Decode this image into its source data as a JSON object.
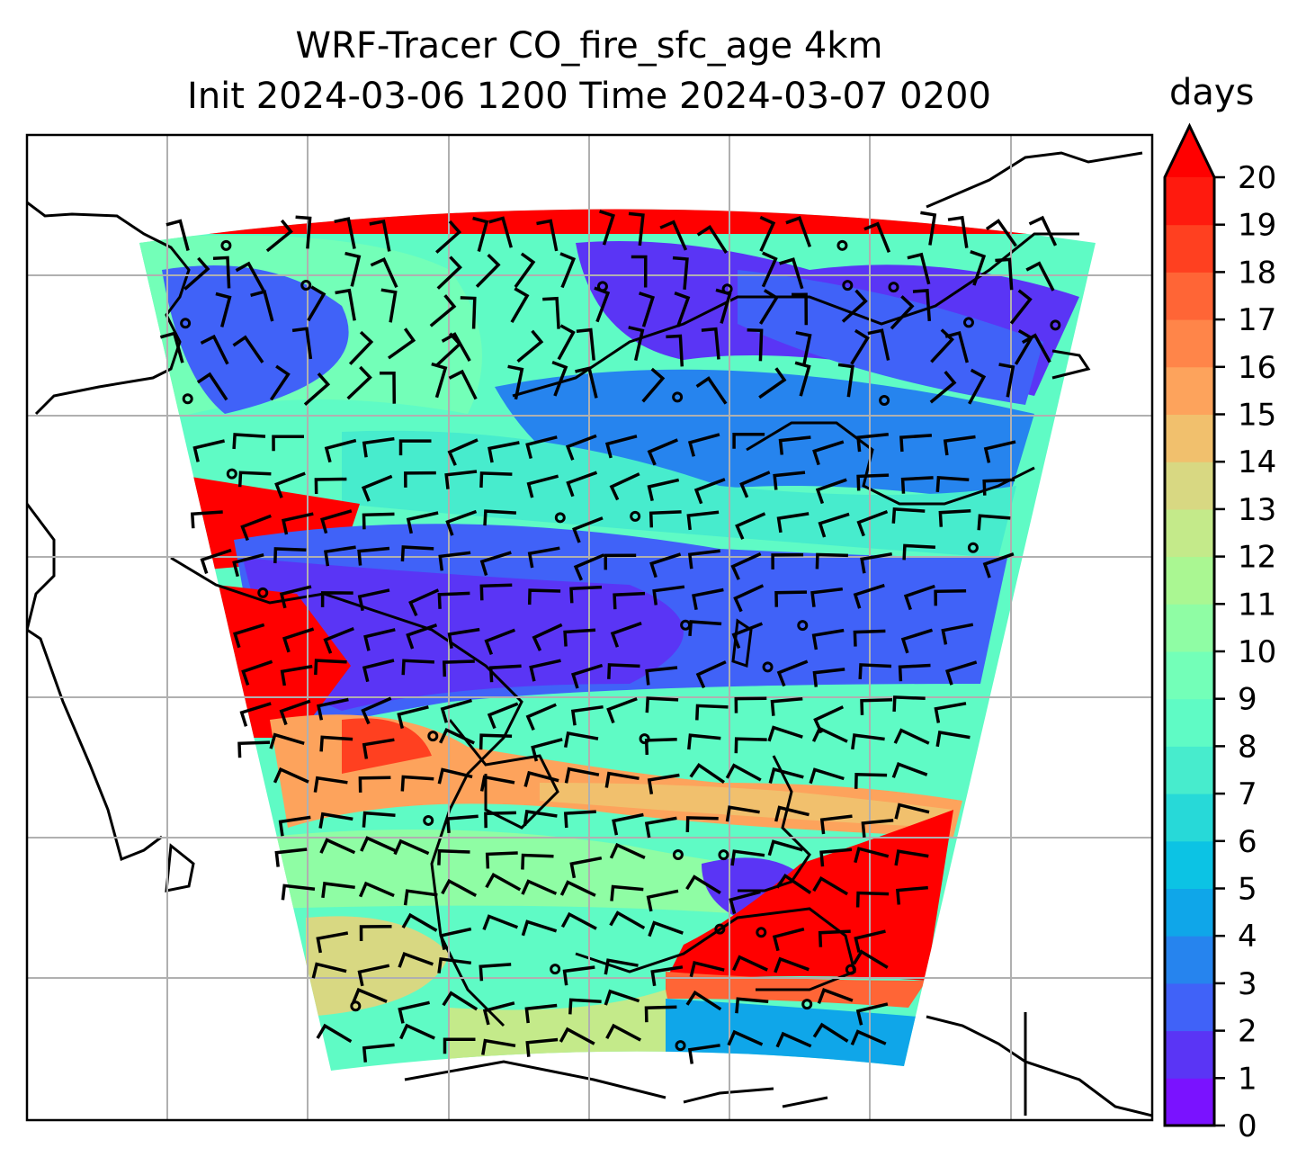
{
  "title": {
    "line1": "WRF-Tracer CO_fire_sfc_age 4km",
    "line2": "Init 2024-03-06 1200 Time 2024-03-07 0200"
  },
  "colorbar": {
    "label": "days",
    "ticks": [
      "0",
      "1",
      "2",
      "3",
      "4",
      "5",
      "6",
      "7",
      "8",
      "9",
      "10",
      "11",
      "12",
      "13",
      "14",
      "15",
      "16",
      "17",
      "18",
      "19",
      "20"
    ],
    "colors": [
      "#7a12ff",
      "#5a35f5",
      "#4062f8",
      "#2684ee",
      "#0fa6e9",
      "#0cc3e4",
      "#27d9d8",
      "#47eccd",
      "#5ffbc5",
      "#73ffb8",
      "#8ffda4",
      "#aaf792",
      "#c4ea8a",
      "#d8d882",
      "#f1c06d",
      "#fda35c",
      "#ff8549",
      "#ff6536",
      "#ff4020",
      "#ff1a0e"
    ],
    "over_color": "#ff0000",
    "extend": "max"
  }
}
